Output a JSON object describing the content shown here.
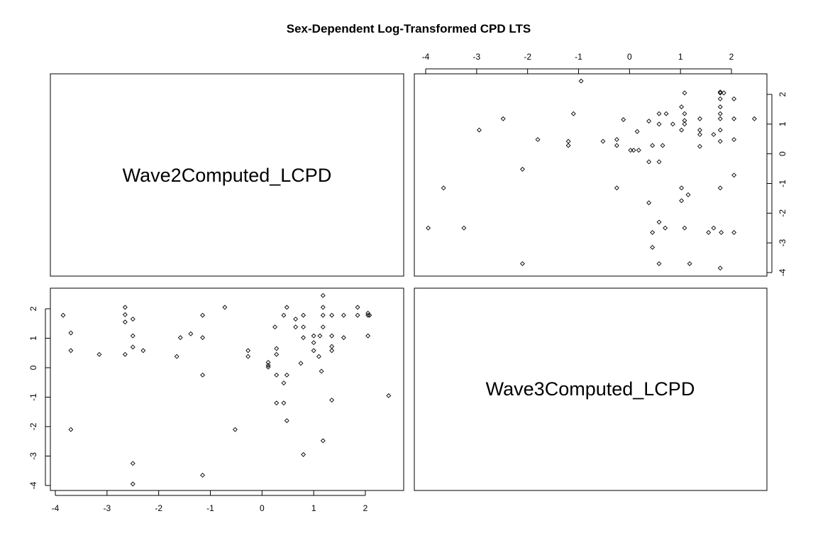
{
  "chart_data": {
    "type": "scatter",
    "title": "Sex-Dependent Log-Transformed CPD LTS",
    "variables": [
      "Wave2Computed_LCPD",
      "Wave3Computed_LCPD"
    ],
    "x_ticks": [
      -4,
      -3,
      -2,
      -1,
      0,
      1,
      2
    ],
    "y_ticks": [
      -4,
      -3,
      -2,
      -1,
      0,
      1,
      2
    ],
    "xlim": [
      -4.1,
      2.6
    ],
    "ylim": [
      -4.1,
      2.6
    ],
    "grid": false,
    "points": [
      {
        "x": -3.85,
        "y": 1.78
      },
      {
        "x": -3.7,
        "y": 1.18
      },
      {
        "x": -3.7,
        "y": 0.58
      },
      {
        "x": -3.7,
        "y": -2.1
      },
      {
        "x": -3.15,
        "y": 0.45
      },
      {
        "x": -2.65,
        "y": 2.05
      },
      {
        "x": -2.65,
        "y": 1.8
      },
      {
        "x": -2.65,
        "y": 1.55
      },
      {
        "x": -2.65,
        "y": 0.45
      },
      {
        "x": -2.5,
        "y": 1.65
      },
      {
        "x": -2.5,
        "y": 1.08
      },
      {
        "x": -2.5,
        "y": 0.7
      },
      {
        "x": -2.5,
        "y": -3.25
      },
      {
        "x": -2.5,
        "y": -3.95
      },
      {
        "x": -2.3,
        "y": 0.58
      },
      {
        "x": -1.65,
        "y": 0.38
      },
      {
        "x": -1.58,
        "y": 1.02
      },
      {
        "x": -1.38,
        "y": 1.15
      },
      {
        "x": -1.15,
        "y": 1.78
      },
      {
        "x": -1.15,
        "y": 1.02
      },
      {
        "x": -1.15,
        "y": -0.25
      },
      {
        "x": -1.15,
        "y": -3.65
      },
      {
        "x": -0.72,
        "y": 2.05
      },
      {
        "x": -0.52,
        "y": -2.1
      },
      {
        "x": -0.27,
        "y": 0.58
      },
      {
        "x": -0.27,
        "y": 0.38
      },
      {
        "x": 0.12,
        "y": 0.18
      },
      {
        "x": 0.12,
        "y": 0.08
      },
      {
        "x": 0.12,
        "y": 0.02
      },
      {
        "x": 0.25,
        "y": 1.38
      },
      {
        "x": 0.28,
        "y": 0.65
      },
      {
        "x": 0.28,
        "y": 0.45
      },
      {
        "x": 0.28,
        "y": -0.25
      },
      {
        "x": 0.28,
        "y": -1.2
      },
      {
        "x": 0.42,
        "y": 1.78
      },
      {
        "x": 0.42,
        "y": -0.52
      },
      {
        "x": 0.42,
        "y": -1.2
      },
      {
        "x": 0.48,
        "y": 2.05
      },
      {
        "x": 0.48,
        "y": -0.25
      },
      {
        "x": 0.48,
        "y": -1.8
      },
      {
        "x": 0.65,
        "y": 1.65
      },
      {
        "x": 0.65,
        "y": 1.38
      },
      {
        "x": 0.75,
        "y": 0.15
      },
      {
        "x": 0.8,
        "y": 1.78
      },
      {
        "x": 0.8,
        "y": 1.38
      },
      {
        "x": 0.8,
        "y": 1.02
      },
      {
        "x": 0.8,
        "y": -2.95
      },
      {
        "x": 1.0,
        "y": 1.08
      },
      {
        "x": 1.0,
        "y": 0.85
      },
      {
        "x": 1.0,
        "y": 0.58
      },
      {
        "x": 1.1,
        "y": 0.38
      },
      {
        "x": 1.12,
        "y": 1.08
      },
      {
        "x": 1.15,
        "y": -0.12
      },
      {
        "x": 1.18,
        "y": 2.45
      },
      {
        "x": 1.18,
        "y": 2.05
      },
      {
        "x": 1.18,
        "y": 1.78
      },
      {
        "x": 1.18,
        "y": 1.38
      },
      {
        "x": 1.18,
        "y": -2.48
      },
      {
        "x": 1.35,
        "y": 1.78
      },
      {
        "x": 1.35,
        "y": 1.08
      },
      {
        "x": 1.35,
        "y": 0.72
      },
      {
        "x": 1.35,
        "y": 0.58
      },
      {
        "x": 1.35,
        "y": -1.1
      },
      {
        "x": 1.58,
        "y": 1.78
      },
      {
        "x": 1.58,
        "y": 1.02
      },
      {
        "x": 1.85,
        "y": 2.05
      },
      {
        "x": 1.85,
        "y": 1.78
      },
      {
        "x": 2.05,
        "y": 1.85
      },
      {
        "x": 2.05,
        "y": 1.78
      },
      {
        "x": 2.05,
        "y": 1.08
      },
      {
        "x": 2.08,
        "y": 1.78
      },
      {
        "x": 2.45,
        "y": -0.95
      }
    ]
  }
}
